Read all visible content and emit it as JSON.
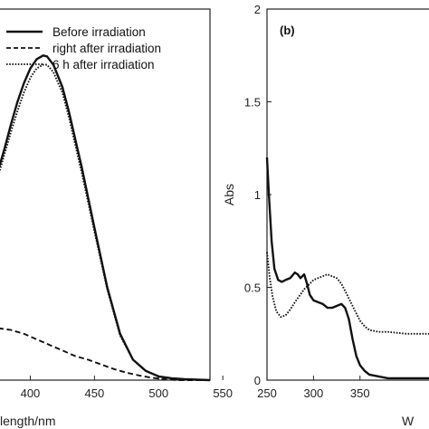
{
  "chart_data": [
    {
      "type": "line",
      "panel": "left (cropped)",
      "xlabel": "Wavelength/nm",
      "xlabel_visible_part": "length/nm",
      "xlim": [
        375,
        540
      ],
      "xticks": [
        400,
        450,
        500,
        550
      ],
      "ylim": [
        0,
        2
      ],
      "grid": false,
      "legend": {
        "placement": "top-right",
        "entries": [
          "Before irradiation",
          "right after irradiation",
          "6 h after irradiation"
        ]
      },
      "series": [
        {
          "name": "Before irradiation",
          "style": "solid",
          "x": [
            375,
            380,
            385,
            390,
            395,
            400,
            405,
            410,
            413,
            418,
            425,
            430,
            440,
            450,
            460,
            470,
            480,
            490,
            500,
            510,
            520,
            540
          ],
          "y": [
            1.13,
            1.25,
            1.38,
            1.5,
            1.6,
            1.68,
            1.73,
            1.75,
            1.745,
            1.7,
            1.58,
            1.45,
            1.15,
            0.82,
            0.5,
            0.25,
            0.11,
            0.05,
            0.02,
            0.01,
            0.005,
            0.0
          ]
        },
        {
          "name": "right after irradiation",
          "style": "dashed",
          "x": [
            375,
            385,
            395,
            405,
            415,
            425,
            435,
            445,
            455,
            465,
            475,
            485,
            495,
            505,
            515,
            525,
            540
          ],
          "y": [
            0.28,
            0.27,
            0.25,
            0.22,
            0.19,
            0.16,
            0.13,
            0.11,
            0.085,
            0.06,
            0.04,
            0.025,
            0.012,
            0.005,
            0.0,
            0.0,
            0.0
          ]
        },
        {
          "name": "6 h after irradiation",
          "style": "dotted",
          "x": [
            375,
            380,
            385,
            390,
            395,
            400,
            405,
            410,
            413,
            418,
            425,
            430,
            440,
            450,
            460,
            470,
            480,
            490,
            500,
            510,
            520,
            540
          ],
          "y": [
            1.1,
            1.22,
            1.34,
            1.45,
            1.55,
            1.63,
            1.68,
            1.7,
            1.7,
            1.66,
            1.55,
            1.42,
            1.12,
            0.8,
            0.49,
            0.24,
            0.11,
            0.05,
            0.02,
            0.01,
            0.005,
            0.0
          ]
        }
      ]
    },
    {
      "type": "line",
      "panel": "(b)",
      "ylabel": "Abs",
      "xlabel_visible_part": "W",
      "xlim": [
        250,
        430
      ],
      "ylim": [
        0,
        2
      ],
      "xticks": [
        250,
        300,
        350
      ],
      "yticks": [
        0,
        0.5,
        1,
        1.5,
        2
      ],
      "ytick_labels": [
        "0",
        "0.5",
        "1",
        "1.5",
        "2"
      ],
      "grid": false,
      "series": [
        {
          "style": "solid",
          "x": [
            250,
            252,
            255,
            258,
            262,
            266,
            270,
            275,
            280,
            283,
            286,
            290,
            293,
            296,
            300,
            305,
            310,
            315,
            320,
            325,
            330,
            334,
            338,
            342,
            346,
            350,
            355,
            360,
            370,
            380,
            400,
            430
          ],
          "y": [
            1.2,
            1.0,
            0.75,
            0.6,
            0.54,
            0.53,
            0.54,
            0.55,
            0.58,
            0.57,
            0.55,
            0.57,
            0.52,
            0.46,
            0.43,
            0.42,
            0.41,
            0.39,
            0.39,
            0.4,
            0.41,
            0.39,
            0.33,
            0.22,
            0.13,
            0.08,
            0.05,
            0.03,
            0.02,
            0.01,
            0.01,
            0.01
          ]
        },
        {
          "style": "dotted",
          "x": [
            250,
            253,
            256,
            260,
            265,
            270,
            275,
            280,
            290,
            300,
            310,
            315,
            320,
            325,
            330,
            335,
            340,
            345,
            350,
            355,
            360,
            370,
            380,
            400,
            430
          ],
          "y": [
            0.69,
            0.55,
            0.45,
            0.37,
            0.34,
            0.35,
            0.38,
            0.42,
            0.49,
            0.54,
            0.56,
            0.57,
            0.56,
            0.55,
            0.52,
            0.47,
            0.42,
            0.37,
            0.32,
            0.29,
            0.27,
            0.26,
            0.26,
            0.25,
            0.25
          ]
        }
      ]
    }
  ]
}
